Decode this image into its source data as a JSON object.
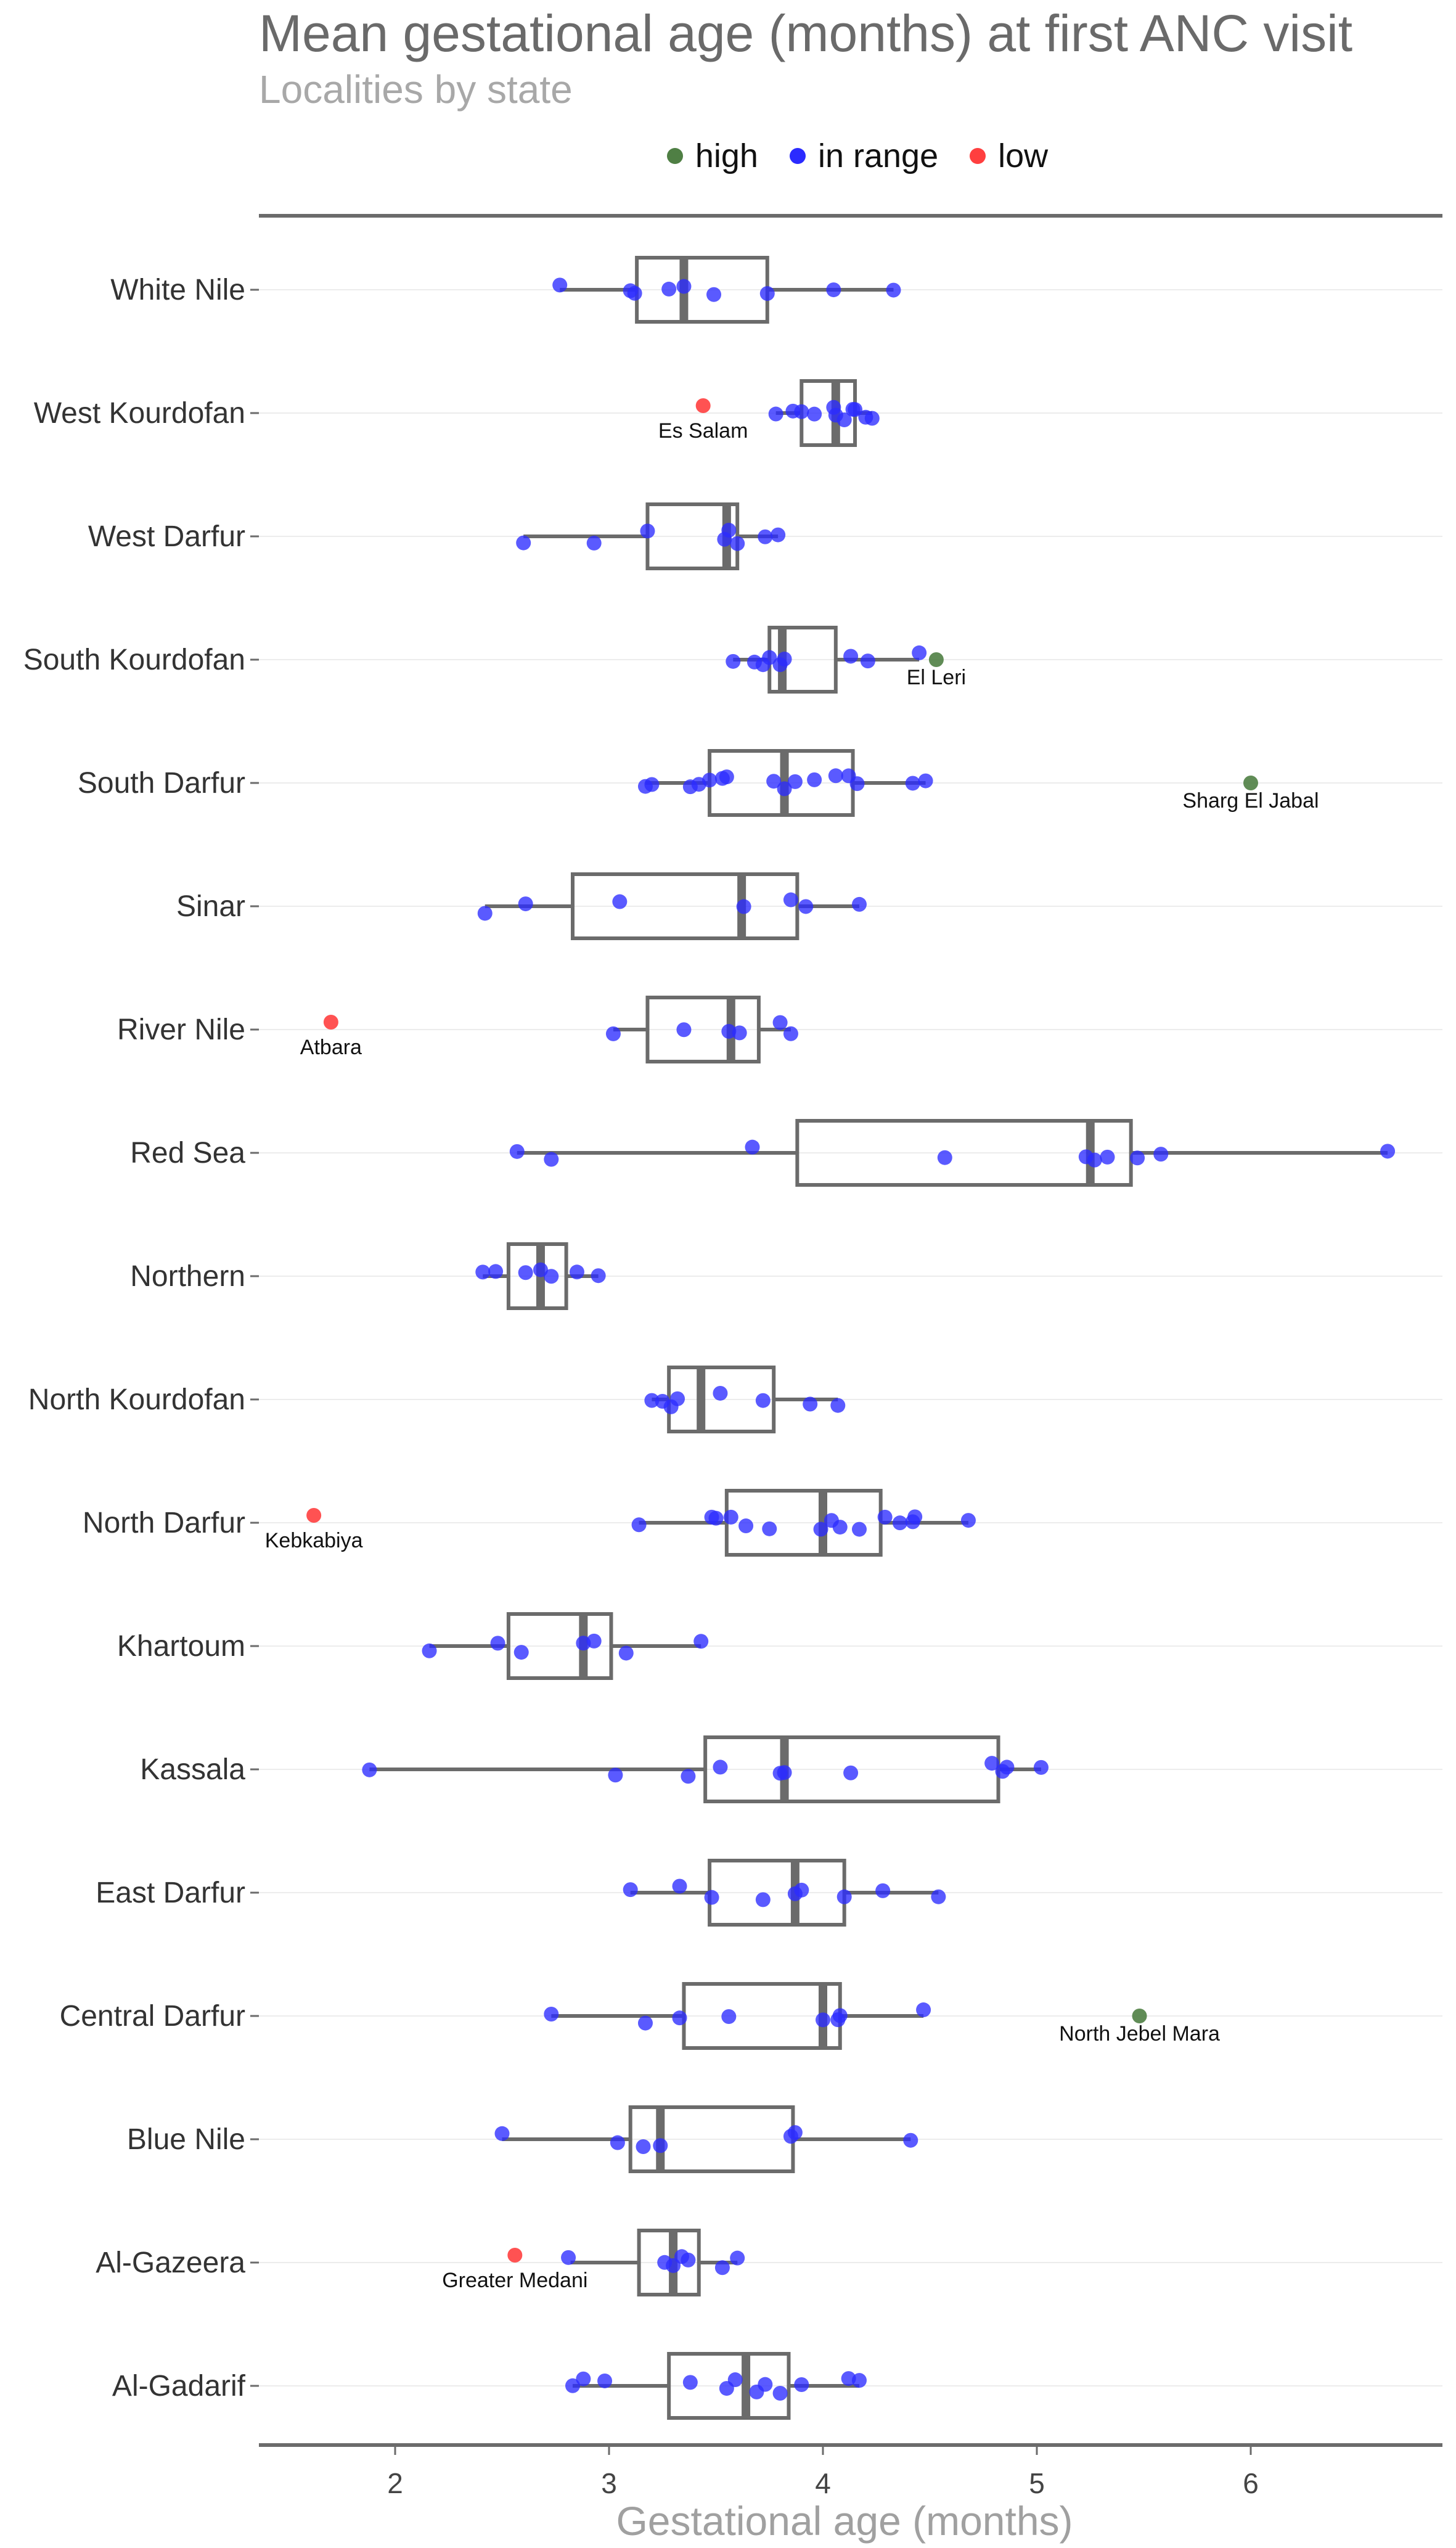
{
  "chart_data": {
    "type": "box",
    "title": "Mean gestational age (months) at first ANC visit",
    "subtitle": "Localities by state",
    "xlabel": "Gestational age (months)",
    "xlim": [
      1.35,
      6.9
    ],
    "xticks": [
      2,
      3,
      4,
      5,
      6
    ],
    "tick_labels": [
      "2",
      "3",
      "4",
      "5",
      "6"
    ],
    "legend_position": "top",
    "legend": [
      {
        "label": "high",
        "color": "#4f7f44"
      },
      {
        "label": "in range",
        "color": "#2b2bff"
      },
      {
        "label": "low",
        "color": "#ff3f3f"
      }
    ],
    "categories": [
      "White Nile",
      "West Kourdofan",
      "West Darfur",
      "South Kourdofan",
      "South Darfur",
      "Sinar",
      "River Nile",
      "Red Sea",
      "Northern",
      "North Kourdofan",
      "North Darfur",
      "Khartoum",
      "Kassala",
      "East Darfur",
      "Central Darfur",
      "Blue Nile",
      "Al-Gazeera",
      "Al-Gadarif"
    ],
    "boxes": [
      {
        "state": "White Nile",
        "whisker_low": 2.77,
        "q1": 3.13,
        "median": 3.35,
        "q3": 3.74,
        "whisker_high": 4.33
      },
      {
        "state": "West Kourdofan",
        "whisker_low": 3.78,
        "q1": 3.9,
        "median": 4.06,
        "q3": 4.15,
        "whisker_high": 4.23
      },
      {
        "state": "West Darfur",
        "whisker_low": 2.6,
        "q1": 3.18,
        "median": 3.55,
        "q3": 3.6,
        "whisker_high": 3.79
      },
      {
        "state": "South Kourdofan",
        "whisker_low": 3.58,
        "q1": 3.75,
        "median": 3.81,
        "q3": 4.06,
        "whisker_high": 4.45
      },
      {
        "state": "South Darfur",
        "whisker_low": 3.17,
        "q1": 3.47,
        "median": 3.82,
        "q3": 4.14,
        "whisker_high": 4.48
      },
      {
        "state": "Sinar",
        "whisker_low": 2.42,
        "q1": 2.83,
        "median": 3.62,
        "q3": 3.88,
        "whisker_high": 4.17
      },
      {
        "state": "River Nile",
        "whisker_low": 3.02,
        "q1": 3.18,
        "median": 3.57,
        "q3": 3.7,
        "whisker_high": 3.85
      },
      {
        "state": "Red Sea",
        "whisker_low": 2.57,
        "q1": 3.88,
        "median": 5.25,
        "q3": 5.44,
        "whisker_high": 6.64
      },
      {
        "state": "Northern",
        "whisker_low": 2.41,
        "q1": 2.53,
        "median": 2.68,
        "q3": 2.8,
        "whisker_high": 2.95
      },
      {
        "state": "North Kourdofan",
        "whisker_low": 3.2,
        "q1": 3.28,
        "median": 3.43,
        "q3": 3.77,
        "whisker_high": 4.07
      },
      {
        "state": "North Darfur",
        "whisker_low": 3.14,
        "q1": 3.55,
        "median": 4.0,
        "q3": 4.27,
        "whisker_high": 4.68
      },
      {
        "state": "Khartoum",
        "whisker_low": 2.16,
        "q1": 2.53,
        "median": 2.88,
        "q3": 3.01,
        "whisker_high": 3.43
      },
      {
        "state": "Kassala",
        "whisker_low": 1.88,
        "q1": 3.45,
        "median": 3.82,
        "q3": 4.82,
        "whisker_high": 5.02
      },
      {
        "state": "East Darfur",
        "whisker_low": 3.1,
        "q1": 3.47,
        "median": 3.87,
        "q3": 4.1,
        "whisker_high": 4.54
      },
      {
        "state": "Central Darfur",
        "whisker_low": 2.73,
        "q1": 3.35,
        "median": 4.0,
        "q3": 4.08,
        "whisker_high": 4.47
      },
      {
        "state": "Blue Nile",
        "whisker_low": 2.5,
        "q1": 3.1,
        "median": 3.24,
        "q3": 3.86,
        "whisker_high": 4.41
      },
      {
        "state": "Al-Gazeera",
        "whisker_low": 2.82,
        "q1": 3.14,
        "median": 3.3,
        "q3": 3.42,
        "whisker_high": 3.6
      },
      {
        "state": "Al-Gadarif",
        "whisker_low": 2.83,
        "q1": 3.28,
        "median": 3.64,
        "q3": 3.84,
        "whisker_high": 4.17
      }
    ],
    "points": [
      {
        "state": "White Nile",
        "values": [
          2.77,
          3.12,
          3.1,
          3.28,
          3.35,
          3.49,
          3.74,
          4.05,
          4.33
        ]
      },
      {
        "state": "West Kourdofan",
        "values": [
          3.78,
          3.86,
          3.9,
          3.96,
          4.05,
          4.06,
          4.1,
          4.14,
          4.15,
          4.2,
          4.23
        ],
        "low": [
          3.44
        ]
      },
      {
        "state": "West Darfur",
        "values": [
          2.6,
          2.93,
          3.18,
          3.54,
          3.56,
          3.6,
          3.73,
          3.79
        ]
      },
      {
        "state": "South Kourdofan",
        "values": [
          3.58,
          3.68,
          3.72,
          3.75,
          3.8,
          3.82,
          4.13,
          4.21,
          4.45
        ],
        "high": [
          4.53
        ]
      },
      {
        "state": "South Darfur",
        "values": [
          3.17,
          3.2,
          3.38,
          3.42,
          3.47,
          3.53,
          3.55,
          3.77,
          3.82,
          3.87,
          3.96,
          4.06,
          4.12,
          4.16,
          4.42,
          4.48
        ],
        "high": [
          6.0
        ]
      },
      {
        "state": "Sinar",
        "values": [
          2.42,
          2.61,
          3.05,
          3.63,
          3.85,
          3.92,
          4.17
        ]
      },
      {
        "state": "River Nile",
        "values": [
          3.02,
          3.35,
          3.56,
          3.61,
          3.8,
          3.85
        ],
        "low": [
          1.7
        ]
      },
      {
        "state": "Red Sea",
        "values": [
          2.57,
          2.73,
          3.67,
          4.57,
          5.23,
          5.27,
          5.33,
          5.47,
          5.58,
          6.64
        ]
      },
      {
        "state": "Northern",
        "values": [
          2.41,
          2.47,
          2.61,
          2.68,
          2.73,
          2.85,
          2.95
        ]
      },
      {
        "state": "North Kourdofan",
        "values": [
          3.2,
          3.25,
          3.29,
          3.32,
          3.52,
          3.72,
          3.94,
          4.07
        ]
      },
      {
        "state": "North Darfur",
        "values": [
          3.14,
          3.48,
          3.5,
          3.57,
          3.64,
          3.75,
          3.99,
          4.04,
          4.08,
          4.17,
          4.29,
          4.36,
          4.42,
          4.43,
          4.68
        ],
        "low": [
          1.62
        ]
      },
      {
        "state": "Khartoum",
        "values": [
          2.16,
          2.48,
          2.59,
          2.88,
          2.93,
          3.08,
          3.43
        ]
      },
      {
        "state": "Kassala",
        "values": [
          1.88,
          3.03,
          3.37,
          3.52,
          3.8,
          3.82,
          4.13,
          4.79,
          4.84,
          4.86,
          5.02
        ]
      },
      {
        "state": "East Darfur",
        "values": [
          3.1,
          3.33,
          3.48,
          3.72,
          3.87,
          3.9,
          4.1,
          4.28,
          4.54
        ]
      },
      {
        "state": "Central Darfur",
        "values": [
          2.73,
          3.17,
          3.33,
          3.56,
          4.0,
          4.07,
          4.08,
          4.47
        ],
        "high": [
          5.48
        ]
      },
      {
        "state": "Blue Nile",
        "values": [
          2.5,
          3.04,
          3.16,
          3.24,
          3.85,
          3.87,
          4.41
        ]
      },
      {
        "state": "Al-Gazeera",
        "values": [
          2.81,
          3.26,
          3.3,
          3.34,
          3.37,
          3.53,
          3.6
        ],
        "low": [
          2.56
        ]
      },
      {
        "state": "Al-Gadarif",
        "values": [
          2.83,
          2.88,
          2.98,
          3.38,
          3.55,
          3.59,
          3.69,
          3.73,
          3.8,
          3.9,
          4.12,
          4.17
        ]
      }
    ],
    "annotations": [
      {
        "state": "West Kourdofan",
        "x": 3.44,
        "text": "Es Salam"
      },
      {
        "state": "South Kourdofan",
        "x": 4.53,
        "text": "El Leri"
      },
      {
        "state": "South Darfur",
        "x": 6.0,
        "text": "Sharg El Jabal"
      },
      {
        "state": "River Nile",
        "x": 1.7,
        "text": "Atbara"
      },
      {
        "state": "North Darfur",
        "x": 1.62,
        "text": "Kebkabiya"
      },
      {
        "state": "Central Darfur",
        "x": 5.48,
        "text": "North Jebel Mara"
      },
      {
        "state": "Al-Gazeera",
        "x": 2.56,
        "text": "Greater Medani"
      }
    ]
  }
}
